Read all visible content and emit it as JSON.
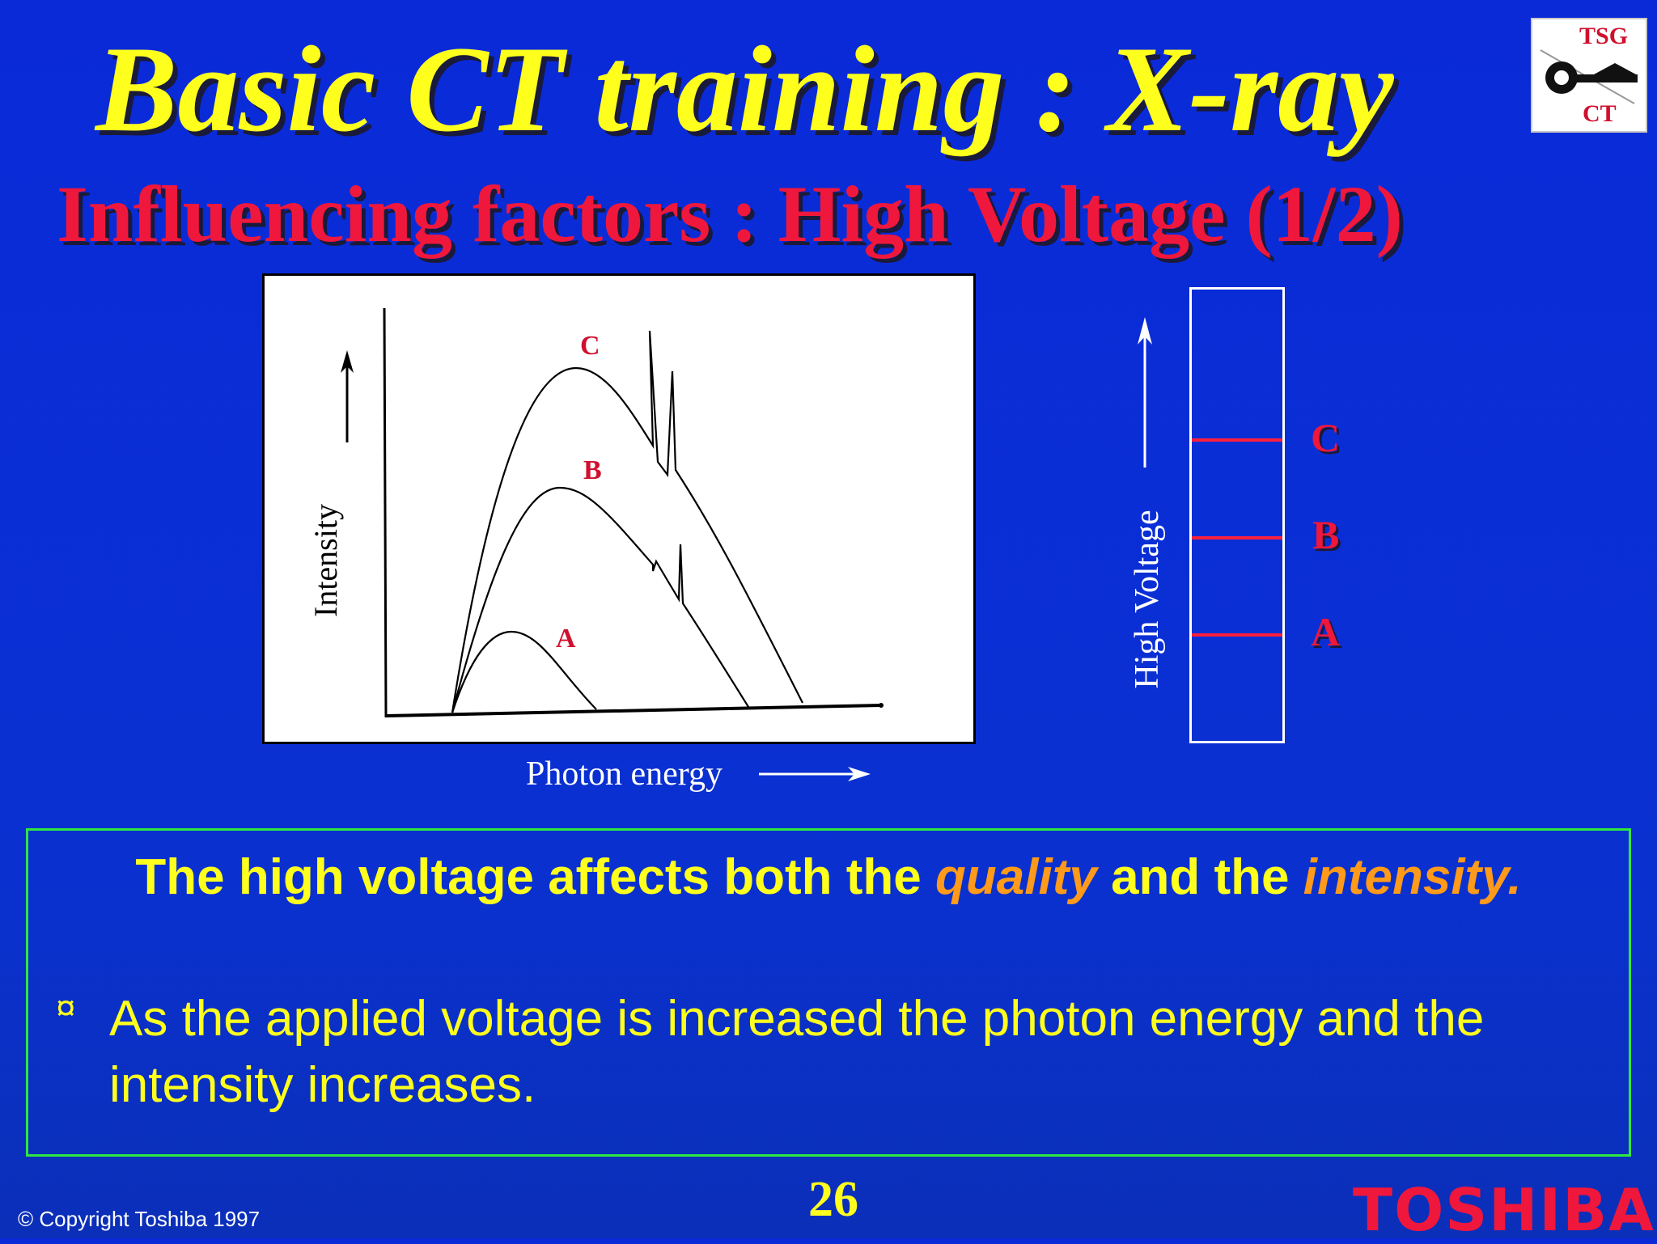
{
  "slide": {
    "title": "Basic CT training : X-ray",
    "subtitle": "Influencing factors : High Voltage (1/2)",
    "logo": {
      "top_text": "TSG",
      "bottom_text": "CT"
    },
    "page_number": "26",
    "copyright": "© Copyright Toshiba 1997",
    "brand": "TOSHIBA"
  },
  "spectrum_figure": {
    "ylabel": "Intensity",
    "xlabel": "Photon energy",
    "curve_labels": [
      "C",
      "B",
      "A"
    ]
  },
  "voltage_scale": {
    "axis_label": "High Voltage",
    "levels": [
      "C",
      "B",
      "A"
    ]
  },
  "textbox": {
    "statement_prefix": "The high voltage affects both the",
    "statement_quality": "quality",
    "statement_middle": "and the",
    "statement_intensity": "intensity.",
    "bullet_symbol": "¤",
    "bullet": "As the applied voltage is increased the photon energy and the intensity increases."
  },
  "colors": {
    "background": "#0a2ed6",
    "title": "#ffff1e",
    "subtitle": "#f0173c",
    "emphasis": "#ff9a1a",
    "frame": "#2ee840",
    "level_line": "#ff1e3c"
  }
}
